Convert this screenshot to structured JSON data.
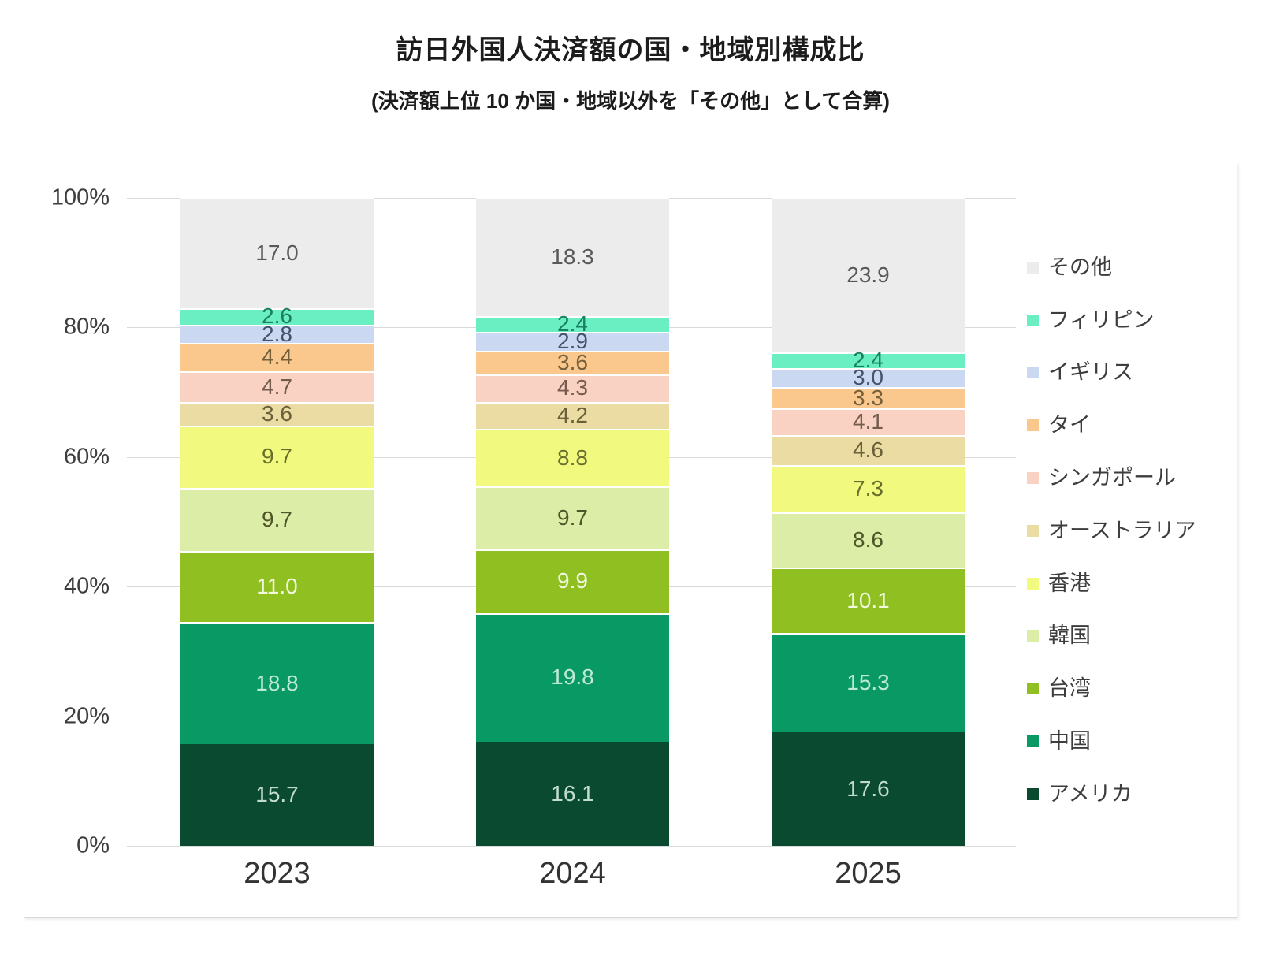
{
  "title": "訪日外国人決済額の国・地域別構成比",
  "subtitle": "(決済額上位 10 か国・地域以外を「その他」として合算)",
  "chart_data": {
    "type": "bar",
    "variant": "stacked-100-percent-column",
    "title": "訪日外国人決済額の国・地域別構成比",
    "subtitle": "(決済額上位 10 か国・地域以外を「その他」として合算)",
    "unit": "%",
    "categories": [
      "2023",
      "2024",
      "2025"
    ],
    "series_bottom_to_top": [
      {
        "id": "usa",
        "name": "アメリカ",
        "color": "#0a4a31",
        "label_color": "#c2dccf",
        "values": [
          15.7,
          16.1,
          17.6
        ]
      },
      {
        "id": "china",
        "name": "中国",
        "color": "#099964",
        "label_color": "#bfe9d7",
        "values": [
          18.8,
          19.8,
          15.3
        ]
      },
      {
        "id": "taiwan",
        "name": "台湾",
        "color": "#90bf21",
        "label_color": "#f2f9e0",
        "values": [
          11.0,
          9.9,
          10.1
        ]
      },
      {
        "id": "korea",
        "name": "韓国",
        "color": "#dceda8",
        "label_color": "#4e5627",
        "values": [
          9.7,
          9.7,
          8.6
        ]
      },
      {
        "id": "hongkong",
        "name": "香港",
        "color": "#f1fa7e",
        "label_color": "#686e2e",
        "values": [
          9.7,
          8.8,
          7.3
        ]
      },
      {
        "id": "australia",
        "name": "オーストラリア",
        "color": "#eadca2",
        "label_color": "#6a603a",
        "values": [
          3.6,
          4.2,
          4.6
        ]
      },
      {
        "id": "singapore",
        "name": "シンガポール",
        "color": "#fad2c3",
        "label_color": "#755b4e",
        "values": [
          4.7,
          4.3,
          4.1
        ]
      },
      {
        "id": "thailand",
        "name": "タイ",
        "color": "#fac78d",
        "label_color": "#75603c",
        "values": [
          4.4,
          3.6,
          3.3
        ]
      },
      {
        "id": "uk",
        "name": "イギリス",
        "color": "#cbd8f1",
        "label_color": "#44546a",
        "values": [
          2.8,
          2.9,
          3.0
        ]
      },
      {
        "id": "philippines",
        "name": "フィリピン",
        "color": "#69efc2",
        "label_color": "#1a7e60",
        "values": [
          2.6,
          2.4,
          2.4
        ]
      },
      {
        "id": "others",
        "name": "その他",
        "color": "#ececec",
        "label_color": "#595959",
        "values": [
          17.0,
          18.3,
          23.9
        ]
      }
    ],
    "y_axis": {
      "tick_labels_top_to_bottom": [
        "100%",
        "80%",
        "60%",
        "40%",
        "20%",
        "0%"
      ],
      "min": 0,
      "max": 100,
      "grid": true,
      "gridline_color": "#d9d9d9"
    },
    "legend": {
      "position": "right",
      "order_top_to_bottom": [
        "その他",
        "フィリピン",
        "イギリス",
        "タイ",
        "シンガポール",
        "オーストラリア",
        "香港",
        "韓国",
        "台湾",
        "中国",
        "アメリカ"
      ]
    }
  }
}
